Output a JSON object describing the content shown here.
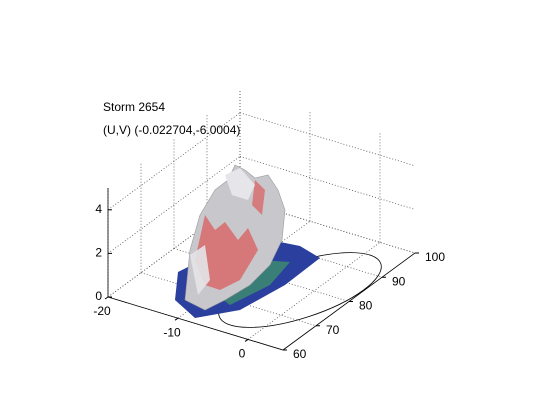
{
  "chart_data": {
    "type": "surface3d",
    "title": "Storm 2654",
    "subtitle": "(U,V) (-0.022704,-6.0004)",
    "xlim": [
      -20,
      5
    ],
    "xticks": [
      -20,
      -10,
      0
    ],
    "ylim": [
      60,
      100
    ],
    "yticks": [
      60,
      70,
      80,
      90,
      100
    ],
    "zlim": [
      0,
      5
    ],
    "zticks": [
      0,
      2,
      4
    ],
    "grid": true
  }
}
